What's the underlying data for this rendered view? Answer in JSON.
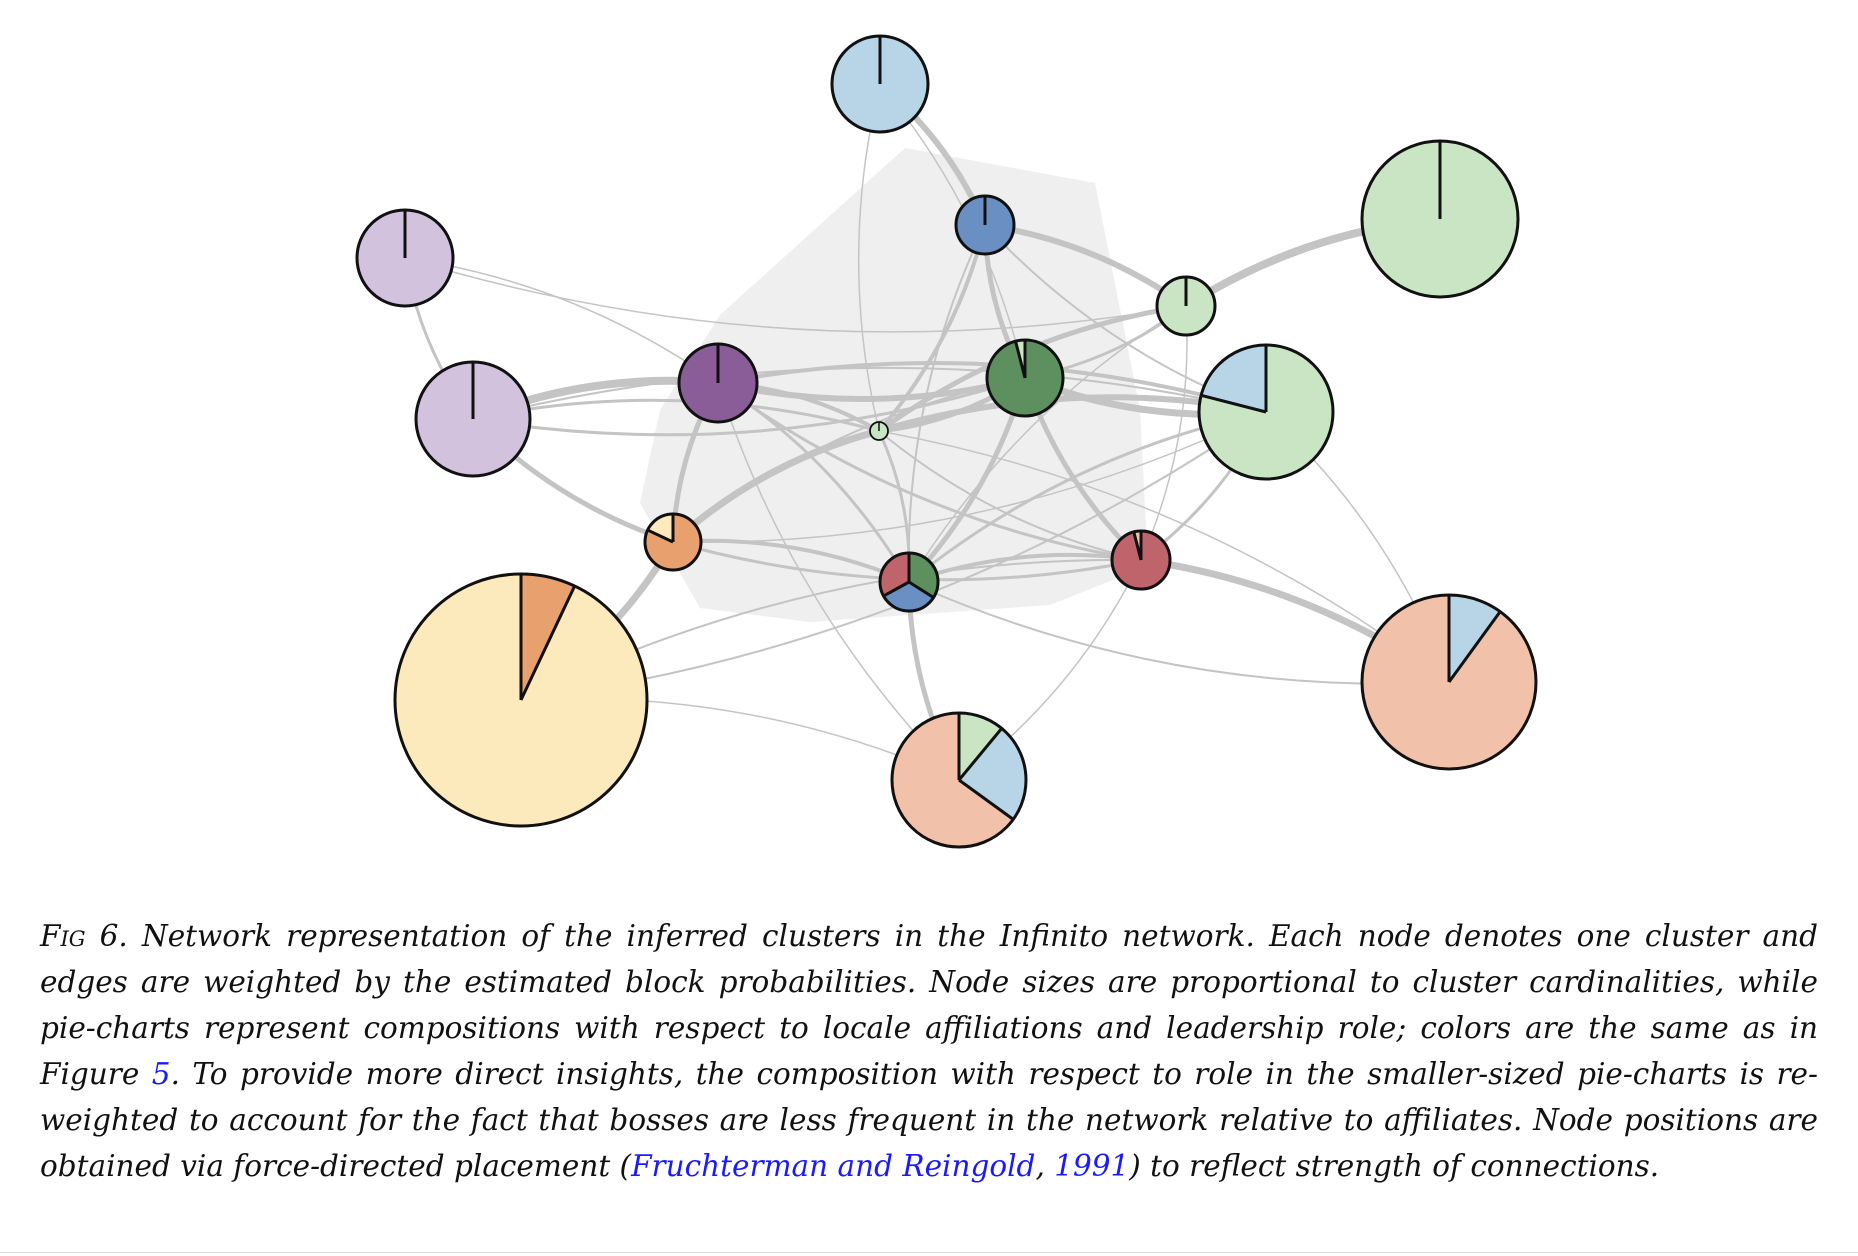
{
  "caption": {
    "fig_label": "Fig 6.",
    "text_1": " Network representation of the inferred clusters in the Infinito network. Each node denotes one cluster and edges are weighted by the estimated block probabilities. Node sizes are proportional to cluster cardinalities, while pie-charts represent compositions with respect to locale affiliations and leadership role; colors are the same as in Figure ",
    "fig_ref": "5",
    "text_2": ". To provide more direct insights, the composition with respect to role in the smaller-sized pie-charts is re-weighted to account for the fact that bosses are less frequent in the network relative to affiliates. Node positions are obtained via force-directed placement (",
    "cite_authors": "Fruchterman and Reingold",
    "cite_sep": ", ",
    "cite_year": "1991",
    "text_3": ") to reflect strength of connections."
  },
  "colors": {
    "light_blue": "#b7d5e7",
    "blue": "#6a8fc2",
    "light_purple": "#d2c2de",
    "purple": "#8a5c98",
    "light_green": "#c9e5c4",
    "green": "#5e8f5f",
    "yellow": "#fce9bc",
    "orange": "#e8a06e",
    "salmon": "#f1c1aa",
    "red": "#c0646c",
    "edge": "#c4c4c4",
    "hull": "#efefef"
  },
  "nodes": [
    {
      "id": "n-top-blue",
      "slices": [
        {
          "color": "light_blue",
          "frac": 1
        }
      ]
    },
    {
      "id": "n-blue",
      "slices": [
        {
          "color": "blue",
          "frac": 1
        }
      ]
    },
    {
      "id": "n-big-green",
      "slices": [
        {
          "color": "light_green",
          "frac": 1
        }
      ]
    },
    {
      "id": "n-purple-1",
      "slices": [
        {
          "color": "light_purple",
          "frac": 1
        }
      ]
    },
    {
      "id": "n-small-green",
      "slices": [
        {
          "color": "light_green",
          "frac": 1
        }
      ]
    },
    {
      "id": "n-purple-2",
      "slices": [
        {
          "color": "light_purple",
          "frac": 1
        }
      ]
    },
    {
      "id": "n-dark-purple",
      "slices": [
        {
          "color": "purple",
          "frac": 1
        }
      ]
    },
    {
      "id": "n-dark-green",
      "slices": [
        {
          "color": "green",
          "frac": 0.96
        },
        {
          "color": "light_green",
          "frac": 0.04
        }
      ]
    },
    {
      "id": "n-green-blue",
      "slices": [
        {
          "color": "light_green",
          "frac": 0.79
        },
        {
          "color": "light_blue",
          "frac": 0.21
        }
      ]
    },
    {
      "id": "n-tiny",
      "slices": [
        {
          "color": "light_green",
          "frac": 1
        }
      ]
    },
    {
      "id": "n-orange",
      "slices": [
        {
          "color": "orange",
          "frac": 0.82
        },
        {
          "color": "yellow",
          "frac": 0.18
        }
      ]
    },
    {
      "id": "n-mixed",
      "slices": [
        {
          "color": "green",
          "frac": 0.34
        },
        {
          "color": "blue",
          "frac": 0.33
        },
        {
          "color": "red",
          "frac": 0.33
        }
      ]
    },
    {
      "id": "n-red",
      "slices": [
        {
          "color": "red",
          "frac": 0.96
        },
        {
          "color": "salmon",
          "frac": 0.04
        }
      ]
    },
    {
      "id": "n-yellow",
      "slices": [
        {
          "color": "orange",
          "frac": 0.07
        },
        {
          "color": "yellow",
          "frac": 0.93
        }
      ]
    },
    {
      "id": "n-salmon",
      "slices": [
        {
          "color": "light_blue",
          "frac": 0.1
        },
        {
          "color": "salmon",
          "frac": 0.9
        }
      ]
    },
    {
      "id": "n-salmon-mix",
      "slices": [
        {
          "color": "light_green",
          "frac": 0.11
        },
        {
          "color": "light_blue",
          "frac": 0.24
        },
        {
          "color": "salmon",
          "frac": 0.65
        }
      ]
    }
  ]
}
